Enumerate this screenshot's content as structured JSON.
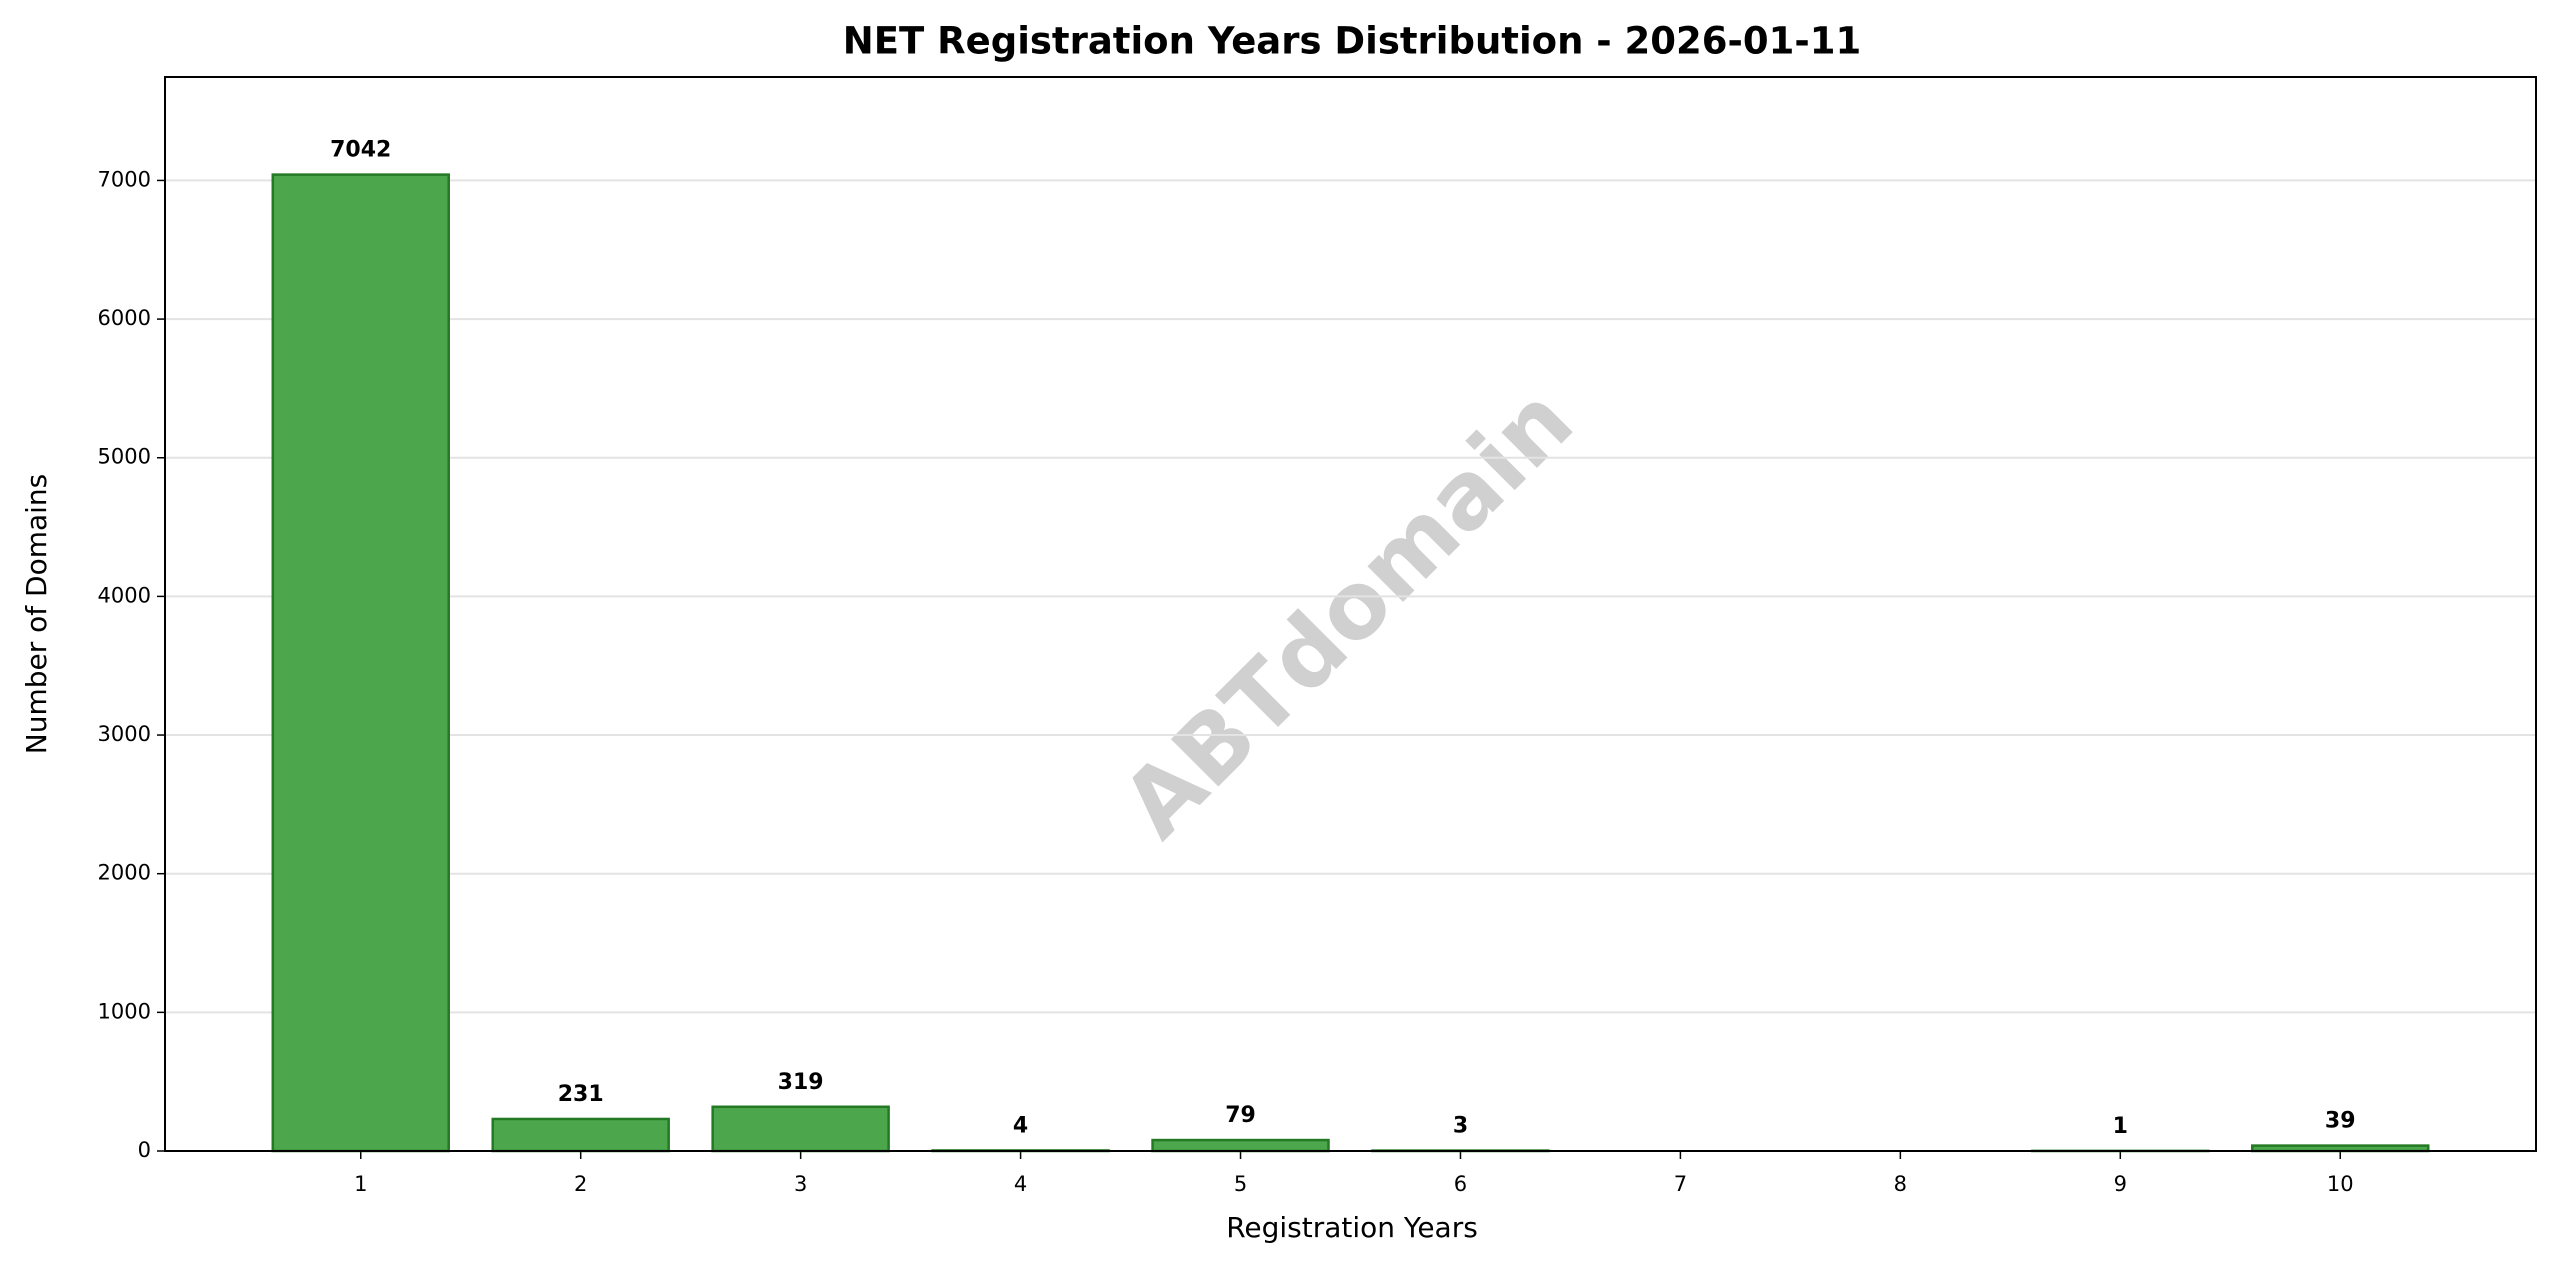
{
  "chart_data": {
    "type": "bar",
    "title": "NET Registration Years Distribution - 2026-01-11",
    "x_label": "Registration Years",
    "y_label": "Number of Domains",
    "watermark": "ABTdomain",
    "x": [
      1,
      2,
      3,
      4,
      5,
      6,
      9,
      10
    ],
    "values": [
      7042,
      231,
      319,
      4,
      79,
      3,
      1,
      39
    ],
    "color": "#4ca64c",
    "edge_color": "#247a24",
    "xlim": [
      0.11,
      10.89
    ],
    "xticks": [
      1,
      2,
      3,
      4,
      5,
      6,
      7,
      8,
      9,
      10
    ],
    "ylim": [
      0,
      7746
    ],
    "yticks": [
      0,
      1000,
      2000,
      3000,
      4000,
      5000,
      6000,
      7000
    ],
    "grid": true
  }
}
